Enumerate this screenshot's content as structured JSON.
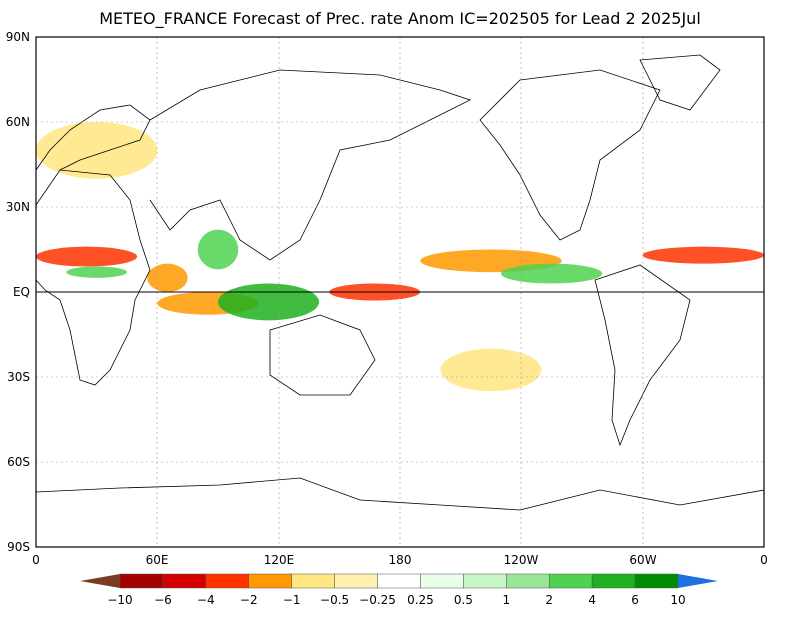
{
  "title": "METEO_FRANCE Forecast of Prec. rate Anom IC=202505 for Lead 2 2025Jul",
  "lat_labels": [
    "90N",
    "60N",
    "30N",
    "EQ",
    "30S",
    "60S",
    "90S"
  ],
  "lon_labels": [
    "0",
    "60E",
    "120E",
    "180",
    "120W",
    "60W",
    "0"
  ],
  "colorbar": {
    "labels": [
      "-10",
      "-6",
      "-4",
      "-2",
      "-1",
      "-0.5",
      "-0.25",
      "0.25",
      "0.5",
      "1",
      "2",
      "4",
      "6",
      "10"
    ],
    "colors": [
      "#7a3b22",
      "#a50000",
      "#d40000",
      "#ff3300",
      "#ff9900",
      "#ffe680",
      "#fff2b3",
      "#ffffff",
      "#e6ffe6",
      "#c8f5c8",
      "#96e696",
      "#4fd24f",
      "#1fb01f",
      "#008c00",
      "#1e6fe0"
    ]
  },
  "map": {
    "lon_range": [
      0,
      360
    ],
    "lat_range": [
      -90,
      90
    ],
    "anomaly_regions": [
      {
        "desc": "Sahel/West Africa",
        "lon": [
          0,
          50
        ],
        "lat": [
          9,
          16
        ],
        "level": "-4"
      },
      {
        "desc": "Central Africa",
        "lon": [
          15,
          45
        ],
        "lat": [
          5,
          9
        ],
        "level": "2"
      },
      {
        "desc": "Arabian Sea",
        "lon": [
          55,
          75
        ],
        "lat": [
          0,
          10
        ],
        "level": "-2"
      },
      {
        "desc": "Bay of Bengal",
        "lon": [
          80,
          100
        ],
        "lat": [
          8,
          22
        ],
        "level": "2"
      },
      {
        "desc": "Indian Ocean",
        "lon": [
          60,
          110
        ],
        "lat": [
          -8,
          0
        ],
        "level": "-2"
      },
      {
        "desc": "Maritime Continent",
        "lon": [
          90,
          140
        ],
        "lat": [
          -10,
          3
        ],
        "level": "4"
      },
      {
        "desc": "West Pacific",
        "lon": [
          145,
          190
        ],
        "lat": [
          -3,
          3
        ],
        "level": "-4"
      },
      {
        "desc": "Pacific ITCZ",
        "lon": [
          190,
          260
        ],
        "lat": [
          7,
          15
        ],
        "level": "-2"
      },
      {
        "desc": "East Pacific",
        "lon": [
          230,
          280
        ],
        "lat": [
          3,
          10
        ],
        "level": "2"
      },
      {
        "desc": "Caribbean/Atlantic",
        "lon": [
          300,
          360
        ],
        "lat": [
          10,
          16
        ],
        "level": "-4"
      },
      {
        "desc": "South Pacific",
        "lon": [
          200,
          250
        ],
        "lat": [
          -35,
          -20
        ],
        "level": "-1"
      },
      {
        "desc": "Europe",
        "lon": [
          0,
          60
        ],
        "lat": [
          40,
          60
        ],
        "level": "-1"
      }
    ]
  }
}
